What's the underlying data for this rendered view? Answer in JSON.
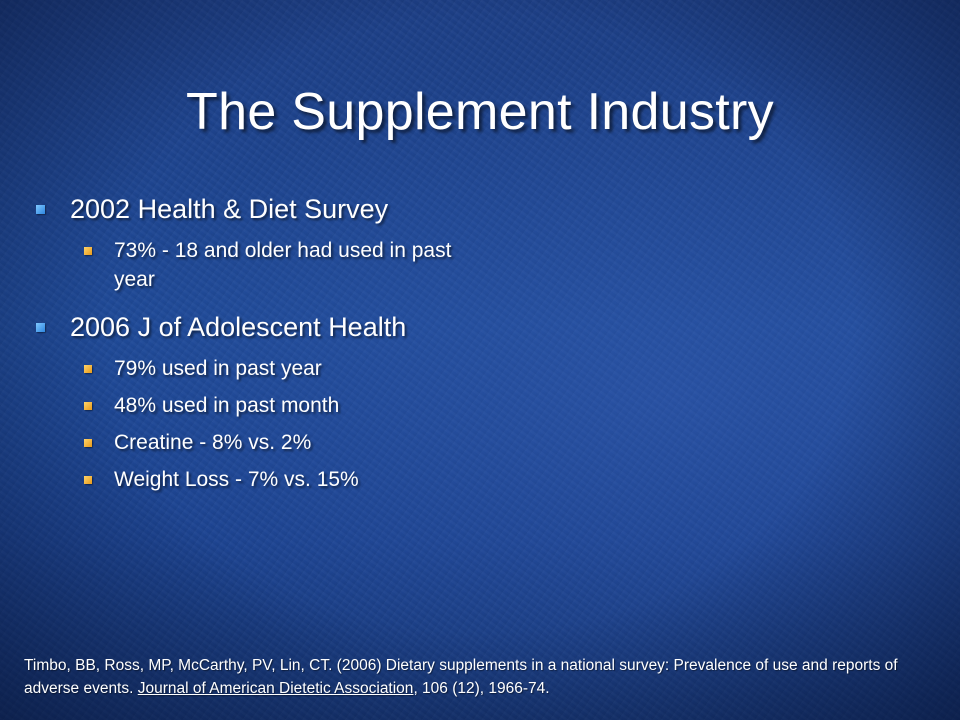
{
  "slide": {
    "title": "The Supplement Industry",
    "bullets": [
      {
        "text": "2002 Health & Diet Survey",
        "sub": [
          "73% - 18 and older had used in past year"
        ]
      },
      {
        "text": "2006 J of Adolescent Health",
        "sub": [
          "79% used in past year",
          "48% used in past month",
          "Creatine - 8% vs. 2%",
          "Weight Loss - 7% vs. 15%"
        ]
      }
    ],
    "citation": {
      "before": "Timbo, BB, Ross, MP, McCarthy, PV, Lin, CT.  (2006) Dietary supplements in a national survey:  Prevalence of use and reports of adverse events.  ",
      "journal": "Journal of American Dietetic Association",
      "after": ", 106 (12), 1966-74."
    }
  },
  "colors": {
    "background": "#1f4a98",
    "text": "#ffffff",
    "bullet_level1": "#4aa8f0",
    "bullet_level2": "#f2b53a"
  }
}
